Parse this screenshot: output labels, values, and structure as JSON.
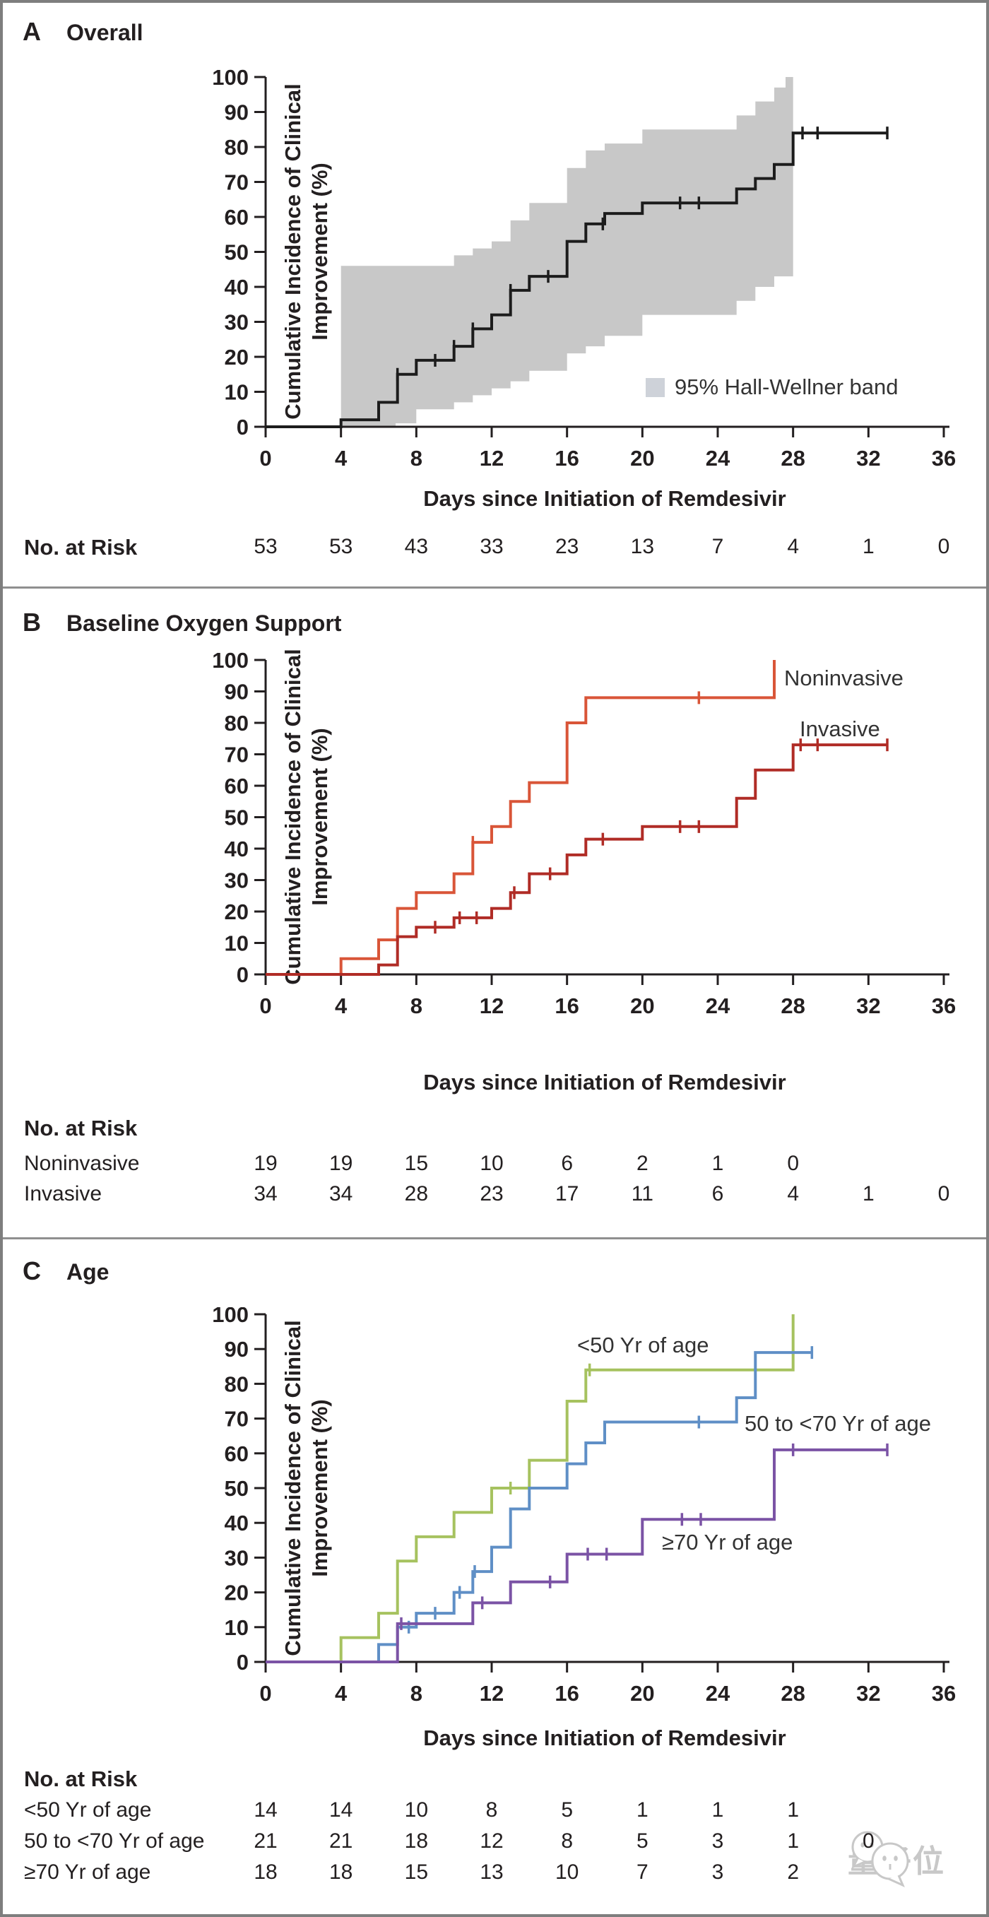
{
  "figure": {
    "ylabel1": "Cumulative Incidence of Clinical",
    "ylabel2": "Improvement (%)",
    "xlabel": "Days since Initiation of Remdesivir",
    "risk_header": "No. at Risk",
    "watermark": "量子位"
  },
  "panels": [
    {
      "letter": "A",
      "title": "Overall"
    },
    {
      "letter": "B",
      "title": "Baseline Oxygen Support"
    },
    {
      "letter": "C",
      "title": "Age"
    }
  ],
  "chart_data": [
    {
      "type": "line",
      "subtype": "cumulative-incidence-step",
      "panel": "A",
      "title": "Overall",
      "xlabel": "Days since Initiation of Remdesivir",
      "ylabel": "Cumulative Incidence of Clinical Improvement (%)",
      "xlim": [
        0,
        36
      ],
      "ylim": [
        0,
        100
      ],
      "xticks": [
        0,
        4,
        8,
        12,
        16,
        20,
        24,
        28,
        32,
        36
      ],
      "yticks": [
        0,
        10,
        20,
        30,
        40,
        50,
        60,
        70,
        80,
        90,
        100
      ],
      "grid": false,
      "band": {
        "label": "95% Hall-Wellner band",
        "color": "#c8c8c8",
        "upper": [
          [
            4,
            46
          ],
          [
            10,
            49
          ],
          [
            11,
            51
          ],
          [
            12,
            53
          ],
          [
            13,
            59
          ],
          [
            14,
            64
          ],
          [
            16,
            74
          ],
          [
            17,
            79
          ],
          [
            18,
            81
          ],
          [
            20,
            85
          ],
          [
            25,
            89
          ],
          [
            26,
            93
          ],
          [
            27,
            97
          ],
          [
            27.6,
            100
          ],
          [
            28,
            100
          ]
        ],
        "lower": [
          [
            4,
            0
          ],
          [
            6.9,
            1
          ],
          [
            8,
            5
          ],
          [
            10,
            7
          ],
          [
            11,
            9
          ],
          [
            12,
            11
          ],
          [
            13,
            13
          ],
          [
            14,
            16
          ],
          [
            16,
            21
          ],
          [
            17,
            23
          ],
          [
            18,
            26
          ],
          [
            20,
            32
          ],
          [
            25,
            36
          ],
          [
            26,
            40
          ],
          [
            27,
            43
          ],
          [
            28,
            44
          ]
        ]
      },
      "series": [
        {
          "name": "Overall",
          "color": "#1c1c1c",
          "steps": [
            [
              0,
              0
            ],
            [
              4,
              2
            ],
            [
              6,
              7
            ],
            [
              7,
              15
            ],
            [
              8,
              19
            ],
            [
              10,
              23
            ],
            [
              11,
              28
            ],
            [
              12,
              32
            ],
            [
              13,
              39
            ],
            [
              14,
              43
            ],
            [
              16,
              53
            ],
            [
              17,
              58
            ],
            [
              18,
              61
            ],
            [
              20,
              64
            ],
            [
              25,
              68
            ],
            [
              26,
              71
            ],
            [
              27,
              75
            ],
            [
              28,
              84
            ],
            [
              33,
              84
            ]
          ],
          "censors": [
            [
              7,
              15
            ],
            [
              9,
              19
            ],
            [
              10,
              23
            ],
            [
              11,
              28
            ],
            [
              13,
              39
            ],
            [
              15,
              43
            ],
            [
              17.9,
              58
            ],
            [
              22,
              64
            ],
            [
              23,
              64
            ],
            [
              28.5,
              84
            ],
            [
              29.3,
              84
            ],
            [
              33,
              84
            ]
          ]
        }
      ],
      "risk": {
        "header": "No. at Risk",
        "rows": [
          {
            "label": "",
            "values": [
              53,
              53,
              43,
              33,
              23,
              13,
              7,
              4,
              1,
              0
            ]
          }
        ]
      }
    },
    {
      "type": "line",
      "subtype": "cumulative-incidence-step",
      "panel": "B",
      "title": "Baseline Oxygen Support",
      "xlabel": "Days since Initiation of Remdesivir",
      "ylabel": "Cumulative Incidence of Clinical Improvement (%)",
      "xlim": [
        0,
        36
      ],
      "ylim": [
        0,
        100
      ],
      "xticks": [
        0,
        4,
        8,
        12,
        16,
        20,
        24,
        28,
        32,
        36
      ],
      "yticks": [
        0,
        10,
        20,
        30,
        40,
        50,
        60,
        70,
        80,
        90,
        100
      ],
      "grid": false,
      "series": [
        {
          "name": "Noninvasive",
          "color": "#d95538",
          "steps": [
            [
              0,
              0
            ],
            [
              4,
              5
            ],
            [
              6,
              11
            ],
            [
              7,
              21
            ],
            [
              8,
              26
            ],
            [
              10,
              32
            ],
            [
              11,
              42
            ],
            [
              12,
              47
            ],
            [
              13,
              55
            ],
            [
              14,
              61
            ],
            [
              16,
              80
            ],
            [
              17,
              88
            ],
            [
              27,
              100
            ]
          ],
          "censors": [
            [
              11,
              42
            ],
            [
              23,
              88
            ]
          ]
        },
        {
          "name": "Invasive",
          "color": "#b02c26",
          "steps": [
            [
              0,
              0
            ],
            [
              6,
              3
            ],
            [
              7,
              12
            ],
            [
              8,
              15
            ],
            [
              10,
              18
            ],
            [
              12,
              21
            ],
            [
              13,
              26
            ],
            [
              14,
              32
            ],
            [
              16,
              38
            ],
            [
              17,
              43
            ],
            [
              20,
              47
            ],
            [
              25,
              56
            ],
            [
              26,
              65
            ],
            [
              28,
              73
            ],
            [
              33,
              73
            ]
          ],
          "censors": [
            [
              9,
              15
            ],
            [
              10.3,
              18
            ],
            [
              11.2,
              18
            ],
            [
              13.2,
              26
            ],
            [
              15.1,
              32
            ],
            [
              17.9,
              43
            ],
            [
              22,
              47
            ],
            [
              23,
              47
            ],
            [
              28.4,
              73
            ],
            [
              29.3,
              73
            ],
            [
              33,
              73
            ]
          ]
        }
      ],
      "risk": {
        "header": "No. at Risk",
        "rows": [
          {
            "label": "Noninvasive",
            "values": [
              19,
              19,
              15,
              10,
              6,
              2,
              1,
              0
            ]
          },
          {
            "label": "Invasive",
            "values": [
              34,
              34,
              28,
              23,
              17,
              11,
              6,
              4,
              1,
              0
            ]
          }
        ]
      }
    },
    {
      "type": "line",
      "subtype": "cumulative-incidence-step",
      "panel": "C",
      "title": "Age",
      "xlabel": "Days since Initiation of Remdesivir",
      "ylabel": "Cumulative Incidence of Clinical Improvement (%)",
      "xlim": [
        0,
        36
      ],
      "ylim": [
        0,
        100
      ],
      "xticks": [
        0,
        4,
        8,
        12,
        16,
        20,
        24,
        28,
        32,
        36
      ],
      "yticks": [
        0,
        10,
        20,
        30,
        40,
        50,
        60,
        70,
        80,
        90,
        100
      ],
      "grid": false,
      "series": [
        {
          "name": "<50 Yr of age",
          "color": "#a6c25f",
          "steps": [
            [
              0,
              0
            ],
            [
              4,
              7
            ],
            [
              6,
              14
            ],
            [
              7,
              29
            ],
            [
              8,
              36
            ],
            [
              10,
              43
            ],
            [
              12,
              50
            ],
            [
              14,
              58
            ],
            [
              16,
              75
            ],
            [
              17,
              84
            ],
            [
              28,
              100
            ]
          ],
          "censors": [
            [
              13,
              50
            ],
            [
              17.2,
              84
            ]
          ]
        },
        {
          "name": "50 to <70 Yr of age",
          "color": "#5f8fc6",
          "steps": [
            [
              0,
              0
            ],
            [
              6,
              5
            ],
            [
              7,
              10
            ],
            [
              8,
              14
            ],
            [
              10,
              20
            ],
            [
              11,
              26
            ],
            [
              12,
              33
            ],
            [
              13,
              44
            ],
            [
              14,
              50
            ],
            [
              16,
              57
            ],
            [
              17,
              63
            ],
            [
              18,
              69
            ],
            [
              25,
              76
            ],
            [
              26,
              89
            ],
            [
              29,
              89
            ]
          ],
          "censors": [
            [
              7.6,
              10
            ],
            [
              9,
              14
            ],
            [
              10.3,
              20
            ],
            [
              11.1,
              26
            ],
            [
              23,
              69
            ],
            [
              29,
              89
            ]
          ]
        },
        {
          "name": "≥70 Yr of age",
          "color": "#7b53a5",
          "steps": [
            [
              0,
              0
            ],
            [
              7,
              11
            ],
            [
              11,
              17
            ],
            [
              13,
              23
            ],
            [
              16,
              31
            ],
            [
              20,
              41
            ],
            [
              27,
              61
            ],
            [
              33,
              61
            ]
          ],
          "censors": [
            [
              7.2,
              11
            ],
            [
              11.5,
              17
            ],
            [
              15.1,
              23
            ],
            [
              17.1,
              31
            ],
            [
              18.1,
              31
            ],
            [
              22.1,
              41
            ],
            [
              23.1,
              41
            ],
            [
              28,
              61
            ],
            [
              33,
              61
            ]
          ]
        }
      ],
      "risk": {
        "header": "No. at Risk",
        "rows": [
          {
            "label": "<50 Yr of age",
            "values": [
              14,
              14,
              10,
              8,
              5,
              1,
              1,
              1
            ]
          },
          {
            "label": "50 to <70 Yr of age",
            "values": [
              21,
              21,
              18,
              12,
              8,
              5,
              3,
              1,
              0
            ]
          },
          {
            "label": "≥70 Yr of age",
            "values": [
              18,
              18,
              15,
              13,
              10,
              7,
              3,
              2
            ]
          }
        ]
      }
    }
  ]
}
